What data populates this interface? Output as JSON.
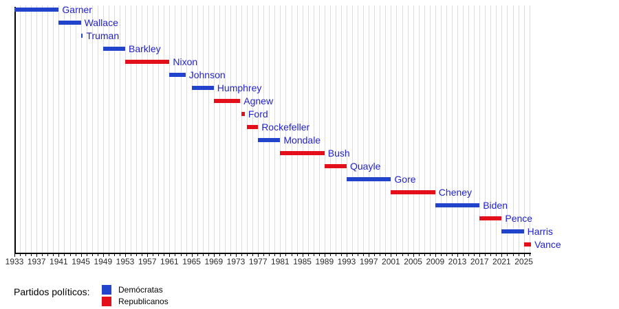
{
  "chart_data": {
    "type": "bar",
    "subtype": "timeline-gantt",
    "title": "",
    "xlabel": "",
    "ylabel": "",
    "x_axis": {
      "min": 1933,
      "max": 2026.3,
      "major_tick_step": 4,
      "minor_tick_step": 1,
      "tick_labels": [
        "1933",
        "1937",
        "1941",
        "1945",
        "1949",
        "1953",
        "1957",
        "1961",
        "1965",
        "1969",
        "1973",
        "1977",
        "1981",
        "1985",
        "1989",
        "1993",
        "1997",
        "2001",
        "2005",
        "2009",
        "2013",
        "2017",
        "2021",
        "2025"
      ]
    },
    "grid": true,
    "legend_position": "bottom-left",
    "series": [
      {
        "name": "Garner",
        "party": "Demócratas",
        "start": 1933,
        "end": 1941
      },
      {
        "name": "Wallace",
        "party": "Demócratas",
        "start": 1941,
        "end": 1945
      },
      {
        "name": "Truman",
        "party": "Demócratas",
        "start": 1945,
        "end": 1945.35
      },
      {
        "name": "Barkley",
        "party": "Demócratas",
        "start": 1949,
        "end": 1953
      },
      {
        "name": "Nixon",
        "party": "Republicanos",
        "start": 1953,
        "end": 1961
      },
      {
        "name": "Johnson",
        "party": "Demócratas",
        "start": 1961,
        "end": 1963.9
      },
      {
        "name": "Humphrey",
        "party": "Demócratas",
        "start": 1965,
        "end": 1969
      },
      {
        "name": "Agnew",
        "party": "Republicanos",
        "start": 1969,
        "end": 1973.78
      },
      {
        "name": "Ford",
        "party": "Republicanos",
        "start": 1973.95,
        "end": 1974.6
      },
      {
        "name": "Rockefeller",
        "party": "Republicanos",
        "start": 1974.95,
        "end": 1977
      },
      {
        "name": "Mondale",
        "party": "Demócratas",
        "start": 1977,
        "end": 1981
      },
      {
        "name": "Bush",
        "party": "Republicanos",
        "start": 1981,
        "end": 1989
      },
      {
        "name": "Quayle",
        "party": "Republicanos",
        "start": 1989,
        "end": 1993
      },
      {
        "name": "Gore",
        "party": "Demócratas",
        "start": 1993,
        "end": 2001
      },
      {
        "name": "Cheney",
        "party": "Republicanos",
        "start": 2001,
        "end": 2009
      },
      {
        "name": "Biden",
        "party": "Demócratas",
        "start": 2009,
        "end": 2017
      },
      {
        "name": "Pence",
        "party": "Republicanos",
        "start": 2017,
        "end": 2021
      },
      {
        "name": "Harris",
        "party": "Demócratas",
        "start": 2021,
        "end": 2025
      },
      {
        "name": "Vance",
        "party": "Republicanos",
        "start": 2025,
        "end": 2026.3
      }
    ],
    "colors": {
      "Demócratas": "#2244cc",
      "Republicanos": "#e3101b",
      "bar_label_text": "#2222cc",
      "axis": "#000000",
      "grid": "#dcdcdc",
      "tick_label": "#2b2b2b"
    }
  },
  "legend": {
    "title": "Partidos políticos:",
    "items": [
      {
        "label": "Demócratas",
        "color": "#2244cc"
      },
      {
        "label": "Republicanos",
        "color": "#e3101b"
      }
    ]
  }
}
